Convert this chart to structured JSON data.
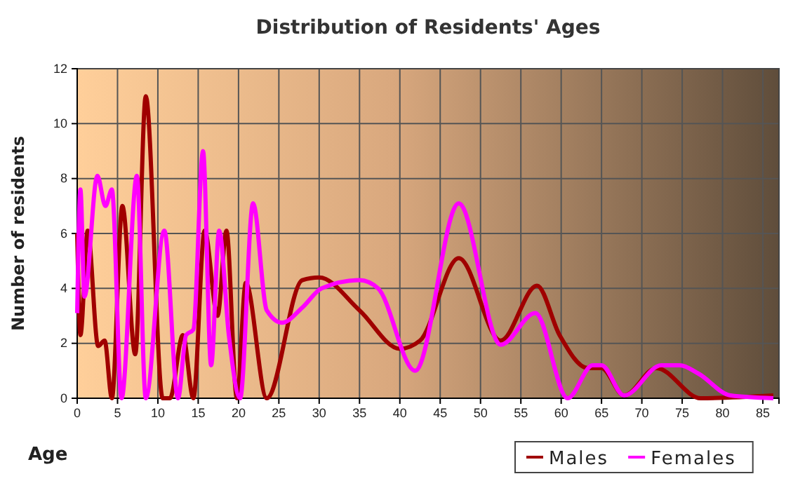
{
  "chart_data": {
    "type": "line",
    "title": "Distribution of Residents' Ages",
    "xlabel": "Age",
    "ylabel": "Number of residents",
    "xlim": [
      0,
      87
    ],
    "xticks": [
      0,
      5,
      10,
      15,
      20,
      25,
      30,
      35,
      40,
      45,
      50,
      55,
      60,
      65,
      70,
      75,
      80,
      85
    ],
    "ylim": [
      0,
      12
    ],
    "yticks": [
      0,
      2,
      4,
      6,
      8,
      10,
      12
    ],
    "grid": true,
    "legend": "bottom",
    "line_style": "solid",
    "marker": "none",
    "series": [
      {
        "name": "Males",
        "color": "#a00000",
        "x": [
          0,
          0.4,
          1.3,
          2.6,
          3.4,
          4.3,
          5.6,
          7.2,
          8.5,
          10.6,
          11.5,
          13.1,
          14.4,
          15.8,
          17.4,
          18.5,
          19.8,
          20.9,
          23.5,
          27.9,
          30,
          35,
          40,
          42.5,
          47.3,
          52.5,
          57,
          59.8,
          63.3,
          65,
          67.8,
          71.8,
          77.3,
          86.3
        ],
        "values": [
          6,
          2.3,
          6.1,
          1.9,
          2.1,
          0,
          7,
          1.6,
          11,
          0,
          0,
          2.3,
          0,
          6.1,
          3,
          6.1,
          0,
          4.2,
          0,
          4.3,
          4.4,
          3.2,
          1.8,
          2.1,
          5.1,
          2.1,
          4.1,
          2.3,
          1.1,
          1.1,
          0.1,
          1.1,
          0,
          0.1
        ]
      },
      {
        "name": "Females",
        "color": "#ff00ff",
        "x": [
          0,
          0.4,
          0.9,
          2.5,
          3.5,
          4.3,
          5.5,
          7.4,
          8.5,
          10.8,
          12.5,
          13.5,
          14.4,
          15.6,
          16.6,
          17.6,
          18.8,
          20.2,
          21.8,
          23.5,
          25.4,
          27.9,
          30.3,
          35,
          37.3,
          41.9,
          47.3,
          52.5,
          56.8,
          60.8,
          63.9,
          65,
          67.8,
          72.4,
          74.7,
          77,
          81,
          86.3
        ],
        "values": [
          3.1,
          7.6,
          3.7,
          8.1,
          7,
          7.6,
          0,
          8.1,
          0,
          6.1,
          0,
          2.3,
          2.5,
          9,
          1.2,
          6.1,
          2.3,
          0,
          7.1,
          3.2,
          2.75,
          3.3,
          4,
          4.3,
          4,
          1,
          7.1,
          1.95,
          3.1,
          0,
          1.2,
          1.2,
          0.1,
          1.2,
          1.2,
          0.9,
          0.1,
          0
        ]
      }
    ]
  }
}
